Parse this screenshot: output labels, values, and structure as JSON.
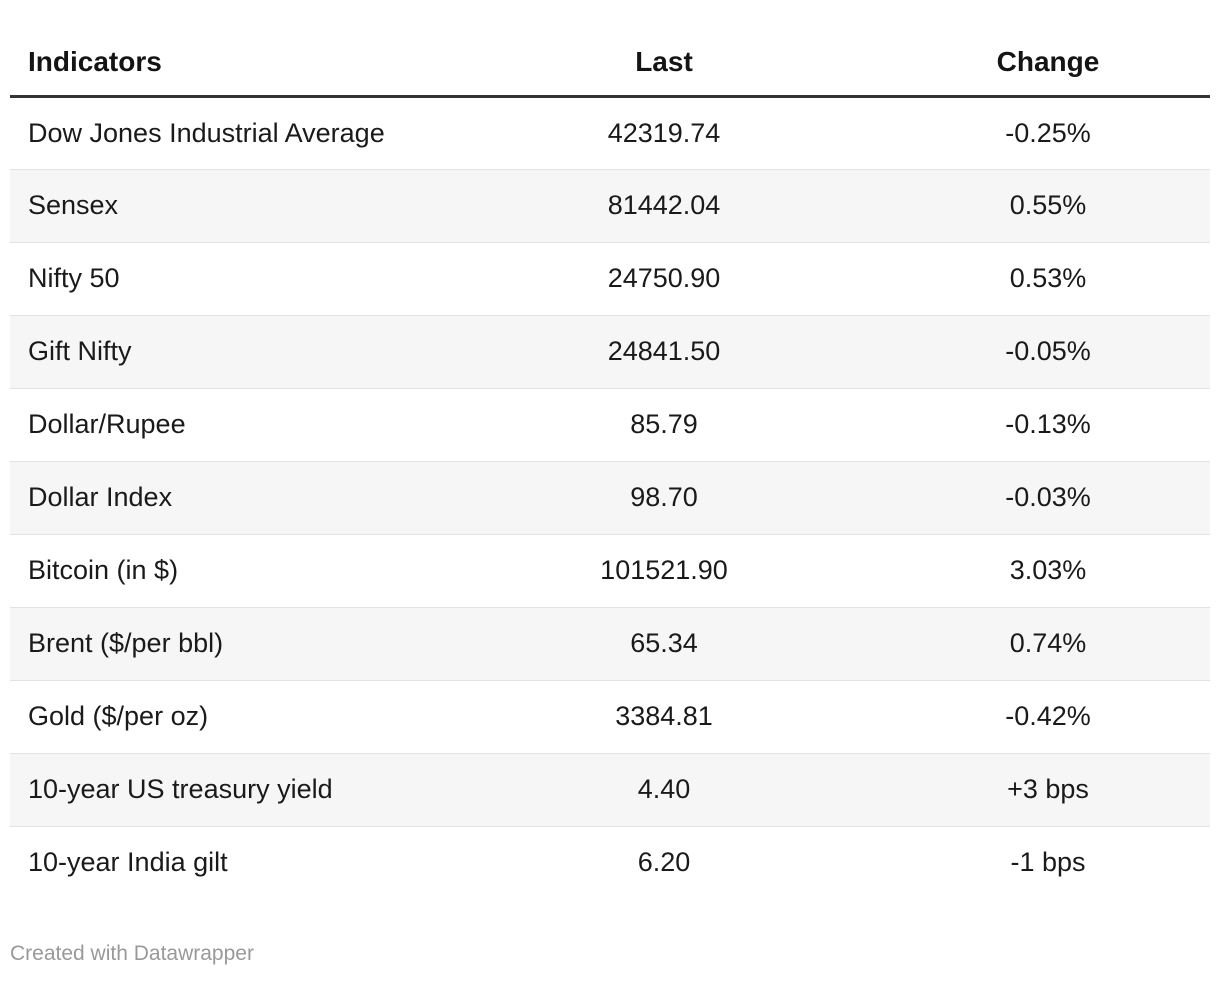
{
  "theme": {
    "stripe_color": "#f6f6f6",
    "row_border_color": "#e3e3e3",
    "header_rule_color": "#333333",
    "body_text_color": "#1a1a1a",
    "header_text_color": "#141414",
    "footer_text_color": "#999999",
    "background_color": "#ffffff"
  },
  "table": {
    "columns": [
      {
        "label": "Indicators",
        "align": "left"
      },
      {
        "label": "Last",
        "align": "center"
      },
      {
        "label": "Change",
        "align": "center"
      }
    ],
    "rows": [
      {
        "indicator": "Dow Jones Industrial Average",
        "last": "42319.74",
        "change": "-0.25%"
      },
      {
        "indicator": "Sensex",
        "last": "81442.04",
        "change": "0.55%"
      },
      {
        "indicator": "Nifty 50",
        "last": "24750.90",
        "change": "0.53%"
      },
      {
        "indicator": "Gift Nifty",
        "last": "24841.50",
        "change": "-0.05%"
      },
      {
        "indicator": "Dollar/Rupee",
        "last": "85.79",
        "change": "-0.13%"
      },
      {
        "indicator": "Dollar Index",
        "last": "98.70",
        "change": "-0.03%"
      },
      {
        "indicator": "Bitcoin (in $)",
        "last": "101521.90",
        "change": "3.03%"
      },
      {
        "indicator": "Brent ($/per bbl)",
        "last": "65.34",
        "change": "0.74%"
      },
      {
        "indicator": "Gold ($/per oz)",
        "last": "3384.81",
        "change": "-0.42%"
      },
      {
        "indicator": "10-year US treasury yield",
        "last": "4.40",
        "change": "+3 bps"
      },
      {
        "indicator": "10-year India gilt",
        "last": "6.20",
        "change": "-1 bps"
      }
    ]
  },
  "footer": {
    "attribution": "Created with Datawrapper"
  }
}
